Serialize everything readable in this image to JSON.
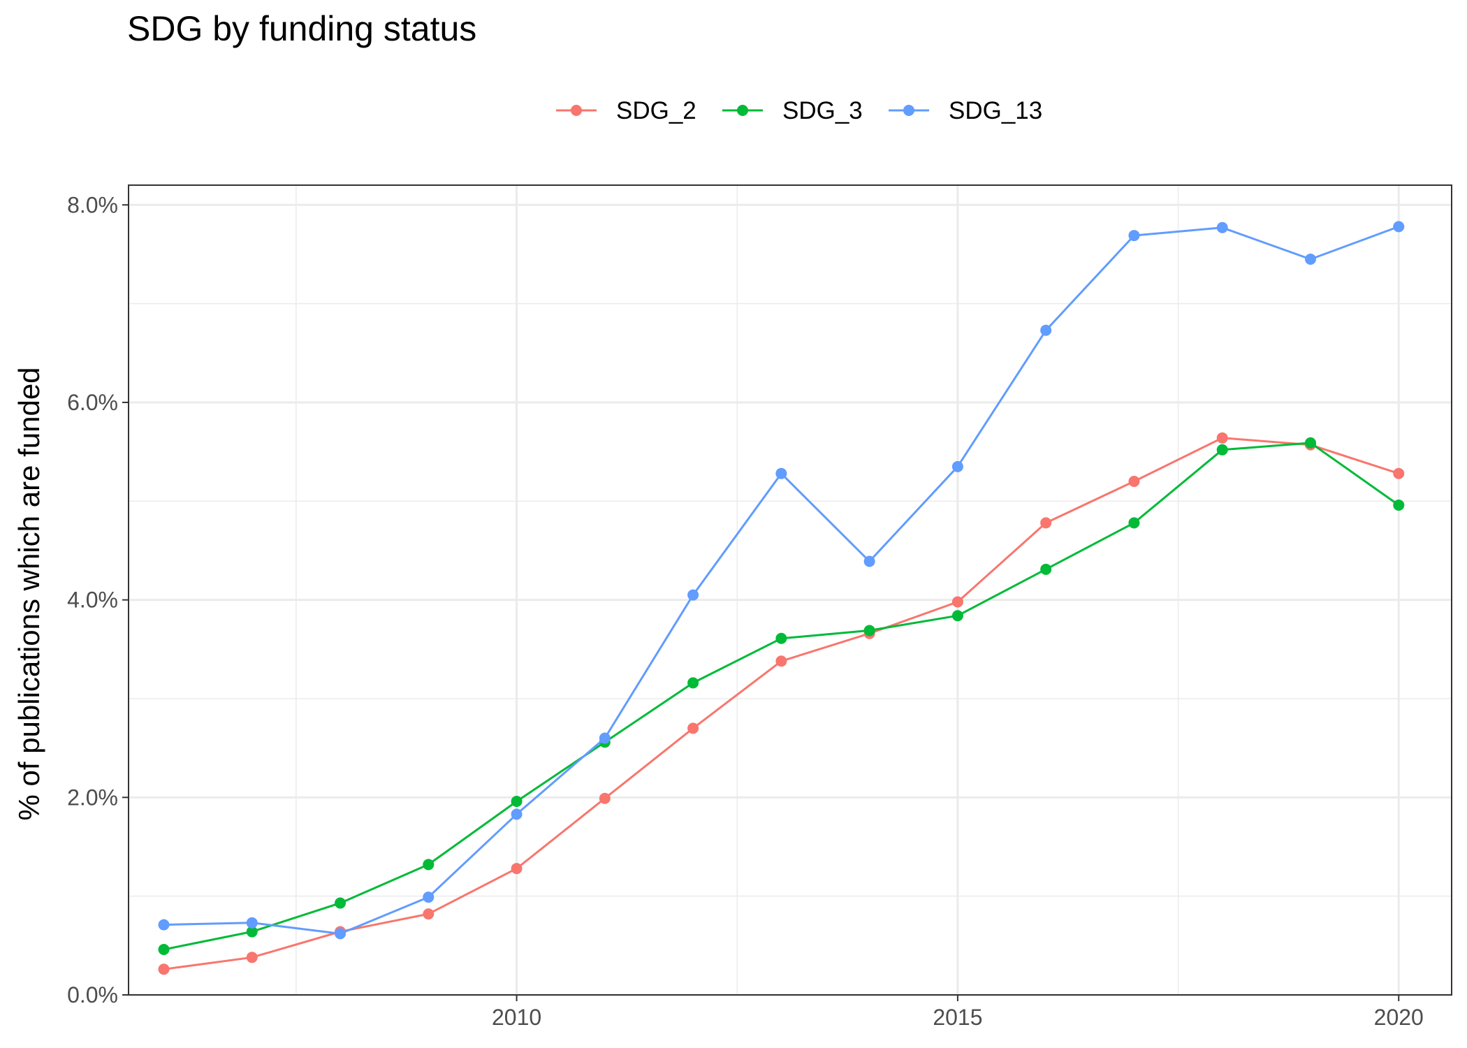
{
  "chart_data": {
    "type": "line",
    "title": "SDG by funding status",
    "xlabel": "",
    "ylabel": "% of publications which are funded",
    "x": [
      2006,
      2007,
      2008,
      2009,
      2010,
      2011,
      2012,
      2013,
      2014,
      2015,
      2016,
      2017,
      2018,
      2019,
      2020
    ],
    "xlim": [
      2005.6,
      2020.6
    ],
    "ylim": [
      0,
      8.2
    ],
    "x_ticks": [
      2010,
      2015,
      2020
    ],
    "x_tick_labels": [
      "2010",
      "2015",
      "2020"
    ],
    "y_ticks": [
      0,
      2,
      4,
      6,
      8
    ],
    "y_tick_labels": [
      "0.0%",
      "2.0%",
      "4.0%",
      "6.0%",
      "8.0%"
    ],
    "grid": true,
    "legend_position": "top",
    "series": [
      {
        "name": "SDG_2",
        "color": "#F8766D",
        "values": [
          0.26,
          0.38,
          0.64,
          0.82,
          1.28,
          1.99,
          2.7,
          3.38,
          3.66,
          3.98,
          4.78,
          5.2,
          5.64,
          5.57,
          5.28
        ]
      },
      {
        "name": "SDG_3",
        "color": "#00BA38",
        "values": [
          0.46,
          0.64,
          0.93,
          1.32,
          1.96,
          2.56,
          3.16,
          3.61,
          3.69,
          3.84,
          4.31,
          4.78,
          5.52,
          5.59,
          4.96
        ]
      },
      {
        "name": "SDG_13",
        "color": "#619CFF",
        "values": [
          0.71,
          0.73,
          0.62,
          0.99,
          1.83,
          2.6,
          4.05,
          5.28,
          4.39,
          5.35,
          6.73,
          7.69,
          7.77,
          7.45,
          7.78
        ]
      }
    ]
  }
}
